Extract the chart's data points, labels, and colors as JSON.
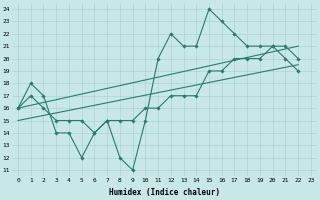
{
  "bg_color": "#c8e8e8",
  "line_color": "#2a7a6a",
  "grid_color": "#a8d0cc",
  "xlabel": "Humidex (Indice chaleur)",
  "xlim": [
    -0.5,
    23.5
  ],
  "ylim": [
    10.5,
    24.5
  ],
  "xticks": [
    0,
    1,
    2,
    3,
    4,
    5,
    6,
    7,
    8,
    9,
    10,
    11,
    12,
    13,
    14,
    15,
    16,
    17,
    18,
    19,
    20,
    21,
    22,
    23
  ],
  "yticks": [
    11,
    12,
    13,
    14,
    15,
    16,
    17,
    18,
    19,
    20,
    21,
    22,
    23,
    24
  ],
  "series": [
    {
      "x": [
        0,
        1,
        2,
        3,
        4,
        5,
        6,
        7,
        8,
        9,
        10,
        11,
        12,
        13,
        14,
        15,
        16,
        17,
        18,
        19,
        20,
        21,
        22
      ],
      "y": [
        16,
        18,
        17,
        14,
        14,
        12,
        14,
        15,
        12,
        11,
        15,
        20,
        22,
        21,
        21,
        24,
        23,
        22,
        21,
        21,
        21,
        20,
        19
      ],
      "markers": true
    },
    {
      "x": [
        0,
        1,
        2,
        3,
        4,
        5,
        6,
        7,
        8,
        9,
        10,
        11,
        12,
        13,
        14,
        15,
        16,
        17,
        18,
        19,
        20,
        21,
        22
      ],
      "y": [
        16,
        17,
        16,
        15,
        15,
        15,
        14,
        15,
        15,
        15,
        16,
        16,
        17,
        17,
        17,
        19,
        19,
        20,
        20,
        20,
        21,
        21,
        20
      ],
      "markers": true
    },
    {
      "x": [
        0,
        22
      ],
      "y": [
        16,
        21
      ],
      "markers": false
    },
    {
      "x": [
        0,
        22
      ],
      "y": [
        15,
        19.5
      ],
      "markers": false
    }
  ]
}
